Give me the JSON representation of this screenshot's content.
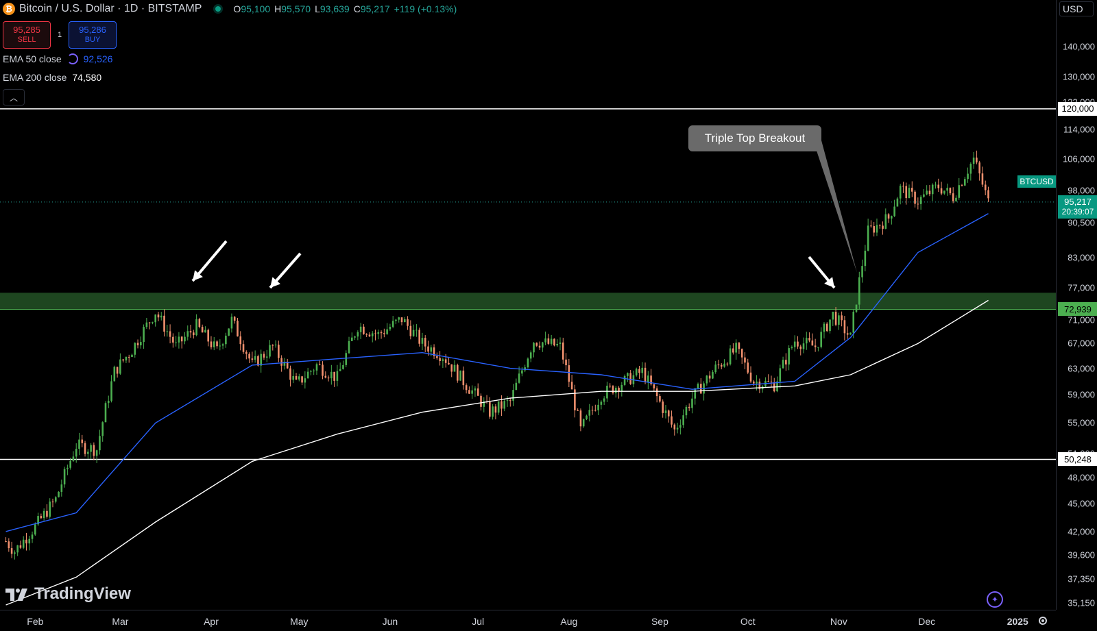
{
  "header": {
    "symbol_title": "Bitcoin / U.S. Dollar · 1D · BITSTAMP",
    "coin_glyph": "₿",
    "ohlc": {
      "o_key": "O",
      "o": "95,100",
      "h_key": "H",
      "h": "95,570",
      "l_key": "L",
      "l": "93,639",
      "c_key": "C",
      "c": "95,217",
      "change": "+119 (+0.13%)"
    }
  },
  "trade": {
    "sell_price": "95,285",
    "sell_label": "SELL",
    "spread": "1",
    "buy_price": "95,286",
    "buy_label": "BUY"
  },
  "indicators": {
    "ema50_label": "EMA 50 close",
    "ema50_value": "92,526",
    "ema50_color": "#2962ff",
    "ema200_label": "EMA 200 close",
    "ema200_value": "74,580",
    "ema200_color": "#ffffff"
  },
  "price_axis": {
    "currency": "USD",
    "ticks": [
      "140,000",
      "130,000",
      "122,000",
      "114,000",
      "106,000",
      "98,000",
      "90,500",
      "83,000",
      "77,000",
      "71,000",
      "67,000",
      "63,000",
      "59,000",
      "55,000",
      "51,000",
      "48,000",
      "45,000",
      "42,000",
      "39,600",
      "37,350",
      "35,150"
    ],
    "resistance_label": "120,000",
    "support_label": "50,248",
    "zone_label": "72,939",
    "last_price": "95,217",
    "countdown": "20:39:07",
    "ticker_tag": "BTCUSD"
  },
  "time_axis": {
    "months": [
      "Feb",
      "Mar",
      "Apr",
      "May",
      "Jun",
      "Jul",
      "Aug",
      "Sep",
      "Oct",
      "Nov",
      "Dec",
      "2025"
    ]
  },
  "annotation": {
    "callout_text": "Triple Top Breakout"
  },
  "branding": {
    "logo_text": "TradingView"
  },
  "colors": {
    "up": "#26a69a",
    "down": "#ef5350",
    "up_candle": "#4caf50",
    "down_candle": "#f0906e",
    "zone": "#1e4620",
    "zone_line": "#4caf50",
    "grid": "#000000"
  },
  "chart_data": {
    "type": "candlestick",
    "title": "Bitcoin / U.S. Dollar · 1D · BITSTAMP",
    "ylim": [
      35000,
      140000
    ],
    "y_scale": "log",
    "x_range": [
      "2024-01-20",
      "2024-12-31"
    ],
    "horizontal_lines": [
      {
        "value": 120000
      },
      {
        "value": 50248
      }
    ],
    "zone": [
      72939,
      76000
    ],
    "series": [
      {
        "name": "BTCUSD close",
        "x": [
          "2024-01-22",
          "2024-01-25",
          "2024-02-01",
          "2024-02-08",
          "2024-02-15",
          "2024-02-22",
          "2024-02-28",
          "2024-03-05",
          "2024-03-13",
          "2024-03-20",
          "2024-03-27",
          "2024-04-03",
          "2024-04-08",
          "2024-04-15",
          "2024-04-22",
          "2024-04-30",
          "2024-05-07",
          "2024-05-14",
          "2024-05-21",
          "2024-05-28",
          "2024-06-05",
          "2024-06-12",
          "2024-06-19",
          "2024-06-26",
          "2024-07-05",
          "2024-07-12",
          "2024-07-20",
          "2024-07-29",
          "2024-08-05",
          "2024-08-12",
          "2024-08-20",
          "2024-08-26",
          "2024-09-06",
          "2024-09-12",
          "2024-09-20",
          "2024-09-27",
          "2024-10-03",
          "2024-10-10",
          "2024-10-17",
          "2024-10-24",
          "2024-10-30",
          "2024-11-05",
          "2024-11-11",
          "2024-11-18",
          "2024-11-22",
          "2024-11-28",
          "2024-12-05",
          "2024-12-10",
          "2024-12-17",
          "2024-12-22"
        ],
        "values": [
          41000,
          40000,
          42500,
          45500,
          52000,
          51500,
          62500,
          66000,
          72500,
          66500,
          70000,
          65800,
          71000,
          63500,
          66500,
          60500,
          63500,
          61500,
          70000,
          68500,
          71200,
          67000,
          65000,
          61000,
          56500,
          58000,
          67500,
          66500,
          54000,
          59000,
          61000,
          62500,
          54000,
          58500,
          63000,
          66000,
          61000,
          60500,
          67500,
          66500,
          72000,
          68000,
          88500,
          91500,
          98500,
          95500,
          99000,
          96500,
          106000,
          95217
        ]
      },
      {
        "name": "EMA 50 close",
        "x": [
          "2024-01-22",
          "2024-02-15",
          "2024-03-13",
          "2024-04-15",
          "2024-05-14",
          "2024-06-12",
          "2024-07-12",
          "2024-08-12",
          "2024-09-12",
          "2024-10-17",
          "2024-11-05",
          "2024-11-28",
          "2024-12-22"
        ],
        "values": [
          42000,
          44000,
          55000,
          63500,
          64500,
          65500,
          63000,
          62000,
          59800,
          61000,
          68000,
          84000,
          92526
        ]
      },
      {
        "name": "EMA 200 close",
        "x": [
          "2024-01-22",
          "2024-02-15",
          "2024-03-13",
          "2024-04-15",
          "2024-05-14",
          "2024-06-12",
          "2024-07-12",
          "2024-08-12",
          "2024-09-12",
          "2024-10-17",
          "2024-11-05",
          "2024-11-28",
          "2024-12-22"
        ],
        "values": [
          35000,
          37500,
          43000,
          50000,
          53500,
          56500,
          58500,
          59500,
          59500,
          60300,
          62000,
          67000,
          74580
        ]
      }
    ],
    "annotations": [
      "Triple Top Breakout"
    ]
  }
}
